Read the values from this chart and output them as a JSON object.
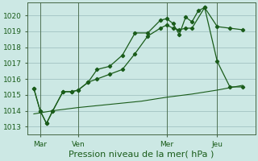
{
  "title": "Pression niveau de la mer( hPa )",
  "bg_color": "#cce8e4",
  "grid_color": "#99bbbb",
  "line_color": "#1a5c1a",
  "ylim": [
    1012.5,
    1020.8
  ],
  "yticks": [
    1013,
    1014,
    1015,
    1016,
    1017,
    1018,
    1019,
    1020
  ],
  "day_labels": [
    "Mar",
    "Ven",
    "Mer",
    "Jeu"
  ],
  "day_positions": [
    1,
    4,
    11,
    15
  ],
  "vline_positions": [
    1,
    4,
    11,
    15
  ],
  "xlim": [
    0.0,
    18.0
  ],
  "series1_x": [
    0.5,
    1.0,
    1.5,
    2.0,
    2.8,
    3.5,
    4.0,
    4.8,
    5.5,
    6.5,
    7.5,
    8.5,
    9.5,
    10.5,
    11.0,
    11.5,
    12.0,
    12.5,
    13.0,
    13.5,
    14.0,
    15.0,
    16.0,
    17.0
  ],
  "series1_y": [
    1015.4,
    1014.0,
    1013.2,
    1014.0,
    1015.2,
    1015.2,
    1015.3,
    1015.8,
    1016.6,
    1016.8,
    1017.5,
    1018.9,
    1018.9,
    1019.7,
    1019.8,
    1019.5,
    1018.8,
    1019.9,
    1019.6,
    1020.3,
    1020.5,
    1019.3,
    1019.2,
    1019.1
  ],
  "series2_x": [
    0.5,
    1.0,
    1.5,
    2.0,
    2.8,
    3.5,
    4.0,
    4.8,
    5.5,
    6.5,
    7.5,
    8.5,
    9.5,
    10.5,
    11.0,
    11.5,
    12.0,
    12.5,
    13.0,
    14.0,
    15.0,
    16.0,
    17.0
  ],
  "series2_y": [
    1015.4,
    1014.0,
    1013.2,
    1014.0,
    1015.2,
    1015.2,
    1015.3,
    1015.8,
    1016.0,
    1016.3,
    1016.6,
    1017.6,
    1018.7,
    1019.2,
    1019.4,
    1019.2,
    1019.1,
    1019.2,
    1019.2,
    1020.5,
    1017.1,
    1015.5,
    1015.5
  ],
  "series3_x": [
    0.5,
    2.0,
    4.0,
    6.5,
    9.0,
    11.0,
    13.0,
    15.0,
    17.0
  ],
  "series3_y": [
    1013.8,
    1014.0,
    1014.2,
    1014.4,
    1014.6,
    1014.85,
    1015.05,
    1015.3,
    1015.6
  ],
  "tick_fontsize": 6.5,
  "xlabel_fontsize": 8,
  "marker": "D",
  "marker_size": 2.2
}
